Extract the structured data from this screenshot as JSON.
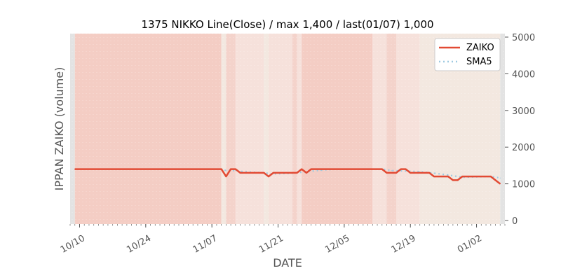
{
  "chart_data": {
    "type": "line",
    "title": "1375 NIKKO Line(Close) / max 1,400 / last(01/07) 1,000",
    "xlabel": "DATE",
    "ylabel": "IPPAN ZAIKO (volume)",
    "ylim": [
      0,
      5000
    ],
    "y_ticks": [
      0,
      1000,
      2000,
      3000,
      4000,
      5000
    ],
    "y_tick_labels": [
      "0",
      "1000",
      "2000",
      "3000",
      "4000",
      "5000"
    ],
    "y_axis_side": "right",
    "x_ticks": [
      {
        "date": "2019-10-10",
        "label": "10/10"
      },
      {
        "date": "2019-10-24",
        "label": "10/24"
      },
      {
        "date": "2019-11-07",
        "label": "11/07"
      },
      {
        "date": "2019-11-21",
        "label": "11/21"
      },
      {
        "date": "2019-12-05",
        "label": "12/05"
      },
      {
        "date": "2019-12-19",
        "label": "12/19"
      },
      {
        "date": "2020-01-02",
        "label": "01/02"
      }
    ],
    "xlim": [
      "2019-10-08",
      "2020-01-08"
    ],
    "grid": false,
    "legend_placement": "top-right",
    "series": [
      {
        "name": "ZAIKO",
        "color": "#e24a33",
        "style": "solid",
        "points": [
          [
            "2019-10-09",
            1400
          ],
          [
            "2019-11-09",
            1400
          ],
          [
            "2019-11-10",
            1200
          ],
          [
            "2019-11-11",
            1400
          ],
          [
            "2019-11-12",
            1400
          ],
          [
            "2019-11-13",
            1300
          ],
          [
            "2019-11-18",
            1300
          ],
          [
            "2019-11-19",
            1200
          ],
          [
            "2019-11-20",
            1300
          ],
          [
            "2019-11-25",
            1300
          ],
          [
            "2019-11-26",
            1400
          ],
          [
            "2019-11-27",
            1300
          ],
          [
            "2019-11-28",
            1400
          ],
          [
            "2019-12-13",
            1400
          ],
          [
            "2019-12-14",
            1300
          ],
          [
            "2019-12-16",
            1300
          ],
          [
            "2019-12-17",
            1400
          ],
          [
            "2019-12-18",
            1400
          ],
          [
            "2019-12-19",
            1300
          ],
          [
            "2019-12-23",
            1300
          ],
          [
            "2019-12-24",
            1200
          ],
          [
            "2019-12-27",
            1200
          ],
          [
            "2019-12-28",
            1100
          ],
          [
            "2019-12-29",
            1100
          ],
          [
            "2019-12-30",
            1200
          ],
          [
            "2020-01-05",
            1200
          ],
          [
            "2020-01-06",
            1100
          ],
          [
            "2020-01-07",
            1000
          ]
        ]
      },
      {
        "name": "SMA5",
        "color": "#9ecae1",
        "style": "dotted",
        "points": [
          [
            "2019-10-14",
            1400
          ],
          [
            "2019-11-09",
            1400
          ],
          [
            "2019-11-10",
            1360
          ],
          [
            "2019-11-12",
            1360
          ],
          [
            "2019-11-13",
            1340
          ],
          [
            "2019-11-15",
            1320
          ],
          [
            "2019-11-18",
            1300
          ],
          [
            "2019-11-20",
            1270
          ],
          [
            "2019-11-24",
            1290
          ],
          [
            "2019-11-27",
            1330
          ],
          [
            "2019-11-30",
            1370
          ],
          [
            "2019-12-03",
            1400
          ],
          [
            "2019-12-13",
            1400
          ],
          [
            "2019-12-15",
            1360
          ],
          [
            "2019-12-18",
            1350
          ],
          [
            "2019-12-21",
            1330
          ],
          [
            "2019-12-24",
            1290
          ],
          [
            "2019-12-27",
            1240
          ],
          [
            "2019-12-30",
            1180
          ],
          [
            "2020-01-02",
            1190
          ],
          [
            "2020-01-05",
            1200
          ],
          [
            "2020-01-07",
            1160
          ]
        ]
      }
    ],
    "background_bands": [
      {
        "start": "2019-10-08",
        "end": "2019-10-09",
        "color": "#e3e3e3"
      },
      {
        "start": "2019-10-09",
        "end": "2019-11-09",
        "color": "#f4cdc4"
      },
      {
        "start": "2019-11-09",
        "end": "2019-11-10",
        "color": "#f3e8e0"
      },
      {
        "start": "2019-11-10",
        "end": "2019-11-12",
        "color": "#f4d3cb"
      },
      {
        "start": "2019-11-12",
        "end": "2019-11-18",
        "color": "#f6e1db"
      },
      {
        "start": "2019-11-18",
        "end": "2019-11-19",
        "color": "#f3e8e0"
      },
      {
        "start": "2019-11-19",
        "end": "2019-11-24",
        "color": "#f6e1db"
      },
      {
        "start": "2019-11-24",
        "end": "2019-11-25",
        "color": "#f4d3cb"
      },
      {
        "start": "2019-11-25",
        "end": "2019-11-26",
        "color": "#f6e1db"
      },
      {
        "start": "2019-11-26",
        "end": "2019-12-11",
        "color": "#f4cdc4"
      },
      {
        "start": "2019-12-11",
        "end": "2019-12-14",
        "color": "#f6e1db"
      },
      {
        "start": "2019-12-14",
        "end": "2019-12-16",
        "color": "#f4d3cb"
      },
      {
        "start": "2019-12-16",
        "end": "2019-12-21",
        "color": "#f6e1db"
      },
      {
        "start": "2019-12-21",
        "end": "2020-01-07",
        "color": "#f3e8e0"
      },
      {
        "start": "2020-01-07",
        "end": "2020-01-08",
        "color": "#e3e3e3"
      }
    ]
  }
}
